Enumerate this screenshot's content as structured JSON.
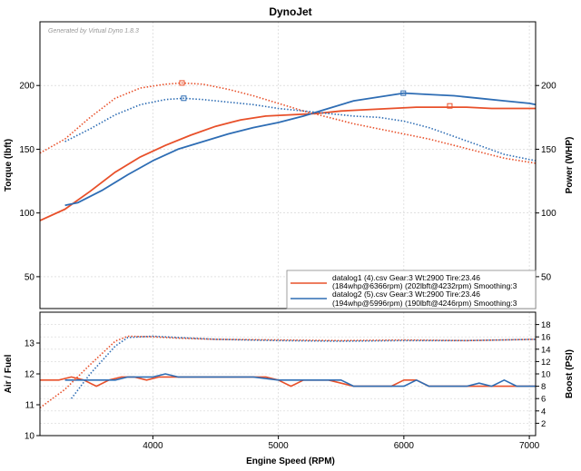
{
  "chart_data": [
    {
      "type": "line",
      "panel": "top",
      "title": "DynoJet",
      "watermark": "Generated by Virtual Dyno 1.8.3",
      "ylabel": "Torque (lbft)",
      "y2label": "Power (WHP)",
      "xlim": [
        3100,
        7050
      ],
      "ylim": [
        25,
        250
      ],
      "y2lim": [
        25,
        250
      ],
      "yticks": [
        50,
        100,
        150,
        200
      ],
      "y2ticks": [
        50,
        100,
        150,
        200
      ],
      "grid": true,
      "legend_position": "bottom-right",
      "legend": [
        {
          "line1": "datalog1 (4).csv Gear:3 Wt:2900 Tire:23.46",
          "line2": "(184whp@6366rpm) (202lbft@4232rpm) Smoothing:3",
          "color": "#e8502a"
        },
        {
          "line1": "datalog2 (5).csv Gear:3 Wt:2900 Tire:23.46",
          "line2": "(194whp@5996rpm) (190lbft@4246rpm) Smoothing:3",
          "color": "#2e6db4"
        }
      ],
      "series": [
        {
          "quantity": "power",
          "log": 1,
          "color": "#e8502a",
          "style": "solid",
          "x": [
            3100,
            3300,
            3500,
            3700,
            3900,
            4100,
            4300,
            4500,
            4700,
            4900,
            5100,
            5300,
            5500,
            5700,
            5900,
            6100,
            6300,
            6500,
            6700,
            6900,
            7050
          ],
          "y": [
            94,
            103,
            117,
            132,
            144,
            153,
            161,
            168,
            173,
            176,
            177,
            178,
            180,
            181,
            182,
            183,
            183,
            183,
            182,
            182,
            182
          ]
        },
        {
          "quantity": "power",
          "log": 2,
          "color": "#2e6db4",
          "style": "solid",
          "x": [
            3300,
            3400,
            3600,
            3800,
            4000,
            4200,
            4400,
            4600,
            4800,
            5000,
            5200,
            5400,
            5600,
            5800,
            6000,
            6200,
            6400,
            6600,
            6800,
            7000,
            7050
          ],
          "y": [
            106,
            108,
            118,
            130,
            141,
            150,
            156,
            162,
            167,
            171,
            176,
            182,
            188,
            191,
            194,
            193,
            192,
            190,
            188,
            186,
            185
          ]
        },
        {
          "quantity": "torque",
          "log": 1,
          "color": "#e8502a",
          "style": "dotted",
          "x": [
            3100,
            3300,
            3500,
            3700,
            3900,
            4100,
            4232,
            4400,
            4600,
            4800,
            5000,
            5200,
            5400,
            5600,
            5800,
            6000,
            6200,
            6400,
            6600,
            6800,
            7050
          ],
          "y": [
            147,
            158,
            175,
            190,
            198,
            201,
            202,
            201,
            197,
            192,
            186,
            180,
            175,
            170,
            166,
            162,
            158,
            153,
            148,
            143,
            139
          ]
        },
        {
          "quantity": "torque",
          "log": 2,
          "color": "#2e6db4",
          "style": "dotted",
          "x": [
            3300,
            3500,
            3700,
            3900,
            4100,
            4246,
            4400,
            4600,
            4800,
            5000,
            5200,
            5400,
            5600,
            5800,
            6000,
            6200,
            6400,
            6600,
            6800,
            7050
          ],
          "y": [
            156,
            166,
            177,
            185,
            189,
            190,
            189,
            187,
            185,
            182,
            180,
            178,
            176,
            175,
            172,
            167,
            160,
            153,
            146,
            141
          ]
        }
      ],
      "markers": [
        {
          "log": 1,
          "quantity": "torque",
          "x": 4232,
          "y": 202
        },
        {
          "log": 2,
          "quantity": "torque",
          "x": 4246,
          "y": 190
        },
        {
          "log": 1,
          "quantity": "power",
          "x": 6366,
          "y": 184
        },
        {
          "log": 2,
          "quantity": "power",
          "x": 5996,
          "y": 194
        }
      ]
    },
    {
      "type": "line",
      "panel": "bottom",
      "xlabel": "Engine Speed (RPM)",
      "ylabel": "Air / Fuel",
      "y2label": "Boost (PSI)",
      "xlim": [
        3100,
        7050
      ],
      "xticks": [
        4000,
        5000,
        6000,
        7000
      ],
      "ylim": [
        11,
        14
      ],
      "yticks": [
        10,
        11,
        12,
        13
      ],
      "ylim_full": [
        10,
        14
      ],
      "y2lim": [
        0,
        20
      ],
      "y2ticks": [
        2,
        4,
        6,
        8,
        10,
        12,
        14,
        16,
        18
      ],
      "series": [
        {
          "quantity": "air_fuel",
          "log": 1,
          "color": "#e8502a",
          "style": "solid",
          "x": [
            3100,
            3250,
            3350,
            3450,
            3550,
            3650,
            3750,
            3850,
            3950,
            4050,
            4150,
            4250,
            4350,
            4500,
            4700,
            4900,
            5000,
            5100,
            5200,
            5300,
            5400,
            5500,
            5600,
            5700,
            5800,
            5900,
            6000,
            6100,
            6200,
            6300,
            6400,
            6500,
            6600,
            6700,
            6800,
            6900,
            7050
          ],
          "y": [
            11.8,
            11.8,
            11.9,
            11.8,
            11.6,
            11.8,
            11.9,
            11.9,
            11.8,
            11.9,
            11.9,
            11.9,
            11.9,
            11.9,
            11.9,
            11.9,
            11.8,
            11.6,
            11.8,
            11.8,
            11.8,
            11.7,
            11.6,
            11.6,
            11.6,
            11.6,
            11.8,
            11.8,
            11.6,
            11.6,
            11.6,
            11.6,
            11.6,
            11.6,
            11.6,
            11.6,
            11.6
          ]
        },
        {
          "quantity": "air_fuel",
          "log": 2,
          "color": "#2e6db4",
          "style": "solid",
          "x": [
            3300,
            3400,
            3500,
            3600,
            3700,
            3800,
            3900,
            4000,
            4100,
            4200,
            4300,
            4400,
            4600,
            4800,
            5000,
            5200,
            5400,
            5500,
            5600,
            5700,
            5800,
            5900,
            6000,
            6100,
            6200,
            6300,
            6400,
            6500,
            6600,
            6700,
            6800,
            6900,
            7050
          ],
          "y": [
            11.8,
            11.8,
            11.8,
            11.8,
            11.8,
            11.9,
            11.9,
            11.9,
            12.0,
            11.9,
            11.9,
            11.9,
            11.9,
            11.9,
            11.8,
            11.8,
            11.8,
            11.8,
            11.6,
            11.6,
            11.6,
            11.6,
            11.6,
            11.8,
            11.6,
            11.6,
            11.6,
            11.6,
            11.7,
            11.6,
            11.8,
            11.6,
            11.6
          ]
        },
        {
          "quantity": "boost",
          "log": 1,
          "color": "#e8502a",
          "style": "dotted",
          "x": [
            3100,
            3300,
            3500,
            3700,
            3800,
            4000,
            4200,
            4500,
            5000,
            5500,
            6000,
            6500,
            7050
          ],
          "y": [
            4.5,
            7.5,
            11.5,
            15.3,
            16.1,
            16.0,
            15.8,
            15.6,
            15.5,
            15.4,
            15.5,
            15.4,
            15.6
          ]
        },
        {
          "quantity": "boost",
          "log": 2,
          "color": "#2e6db4",
          "style": "dotted",
          "x": [
            3350,
            3500,
            3700,
            3800,
            4000,
            4200,
            4500,
            5000,
            5500,
            6000,
            6500,
            7050
          ],
          "y": [
            6.0,
            10.0,
            14.5,
            15.9,
            16.1,
            15.9,
            15.6,
            15.4,
            15.3,
            15.4,
            15.4,
            15.6
          ]
        }
      ]
    }
  ]
}
